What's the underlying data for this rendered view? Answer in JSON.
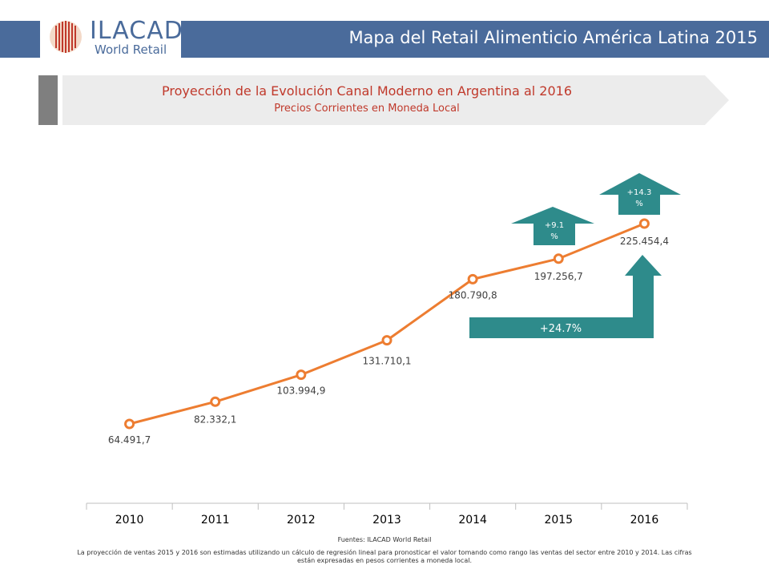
{
  "header": {
    "logo_name": "ILACAD",
    "logo_sub": "World Retail",
    "title": "Mapa del Retail Alimenticio América Latina 2015"
  },
  "banner": {
    "title": "Proyección de la Evolución Canal Moderno en Argentina al 2016",
    "subtitle": "Precios Corrientes en Moneda Local"
  },
  "chart_data": {
    "type": "line",
    "categories": [
      "2010",
      "2011",
      "2012",
      "2013",
      "2014",
      "2015",
      "2016"
    ],
    "values": [
      64491.7,
      82332.1,
      103994.9,
      131710.1,
      180790.8,
      197256.7,
      225454.4
    ],
    "value_labels": [
      "64.491,7",
      "82.332,1",
      "103.994,9",
      "131.710,1",
      "180.790,8",
      "197.256,7",
      "225.454,4"
    ],
    "annotations": {
      "growth_2015": "+9.1 %",
      "growth_2016": "+14.3 %",
      "growth_total": "+24.7%"
    },
    "grid": false
  },
  "colors": {
    "header_bg": "#4a6b9b",
    "line": "#ed7d31",
    "teal": "#2e8b8b",
    "banner_text": "#c0392b"
  },
  "footer": {
    "source": "Fuentes: ILACAD World Retail",
    "note": "La proyección de ventas 2015 y 2016 son estimadas utilizando un cálculo de regresión lineal para pronosticar el valor tomando como rango las ventas del sector entre 2010 y 2014. Las cifras están expresadas en pesos corrientes a moneda local."
  }
}
